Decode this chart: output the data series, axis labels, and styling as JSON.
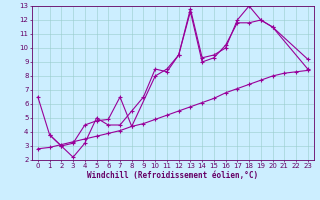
{
  "bg_color": "#cceeff",
  "line_color": "#990099",
  "grid_color": "#99cccc",
  "axis_color": "#660066",
  "tick_color": "#660066",
  "xlabel": "Windchill (Refroidissement éolien,°C)",
  "xlim": [
    -0.5,
    23.5
  ],
  "ylim": [
    2,
    13
  ],
  "xticks": [
    0,
    1,
    2,
    3,
    4,
    5,
    6,
    7,
    8,
    9,
    10,
    11,
    12,
    13,
    14,
    15,
    16,
    17,
    18,
    19,
    20,
    21,
    22,
    23
  ],
  "yticks": [
    2,
    3,
    4,
    5,
    6,
    7,
    8,
    9,
    10,
    11,
    12,
    13
  ],
  "line1_x": [
    0,
    1,
    2,
    3,
    4,
    5,
    6,
    7,
    8,
    9,
    10,
    11,
    12,
    13,
    14,
    15,
    16,
    17,
    18,
    19,
    20,
    23
  ],
  "line1_y": [
    6.5,
    3.8,
    3.0,
    2.2,
    3.2,
    5.0,
    4.5,
    4.5,
    5.5,
    6.5,
    8.5,
    8.3,
    9.5,
    12.6,
    9.0,
    9.3,
    10.2,
    11.8,
    11.8,
    12.0,
    11.5,
    8.5
  ],
  "line2_x": [
    1,
    2,
    3,
    4,
    5,
    6,
    7,
    8,
    10,
    11,
    12,
    13,
    14,
    15,
    16,
    17,
    18,
    19,
    20,
    23
  ],
  "line2_y": [
    3.8,
    3.0,
    3.2,
    4.5,
    4.8,
    4.9,
    6.5,
    4.4,
    8.0,
    8.5,
    9.5,
    12.8,
    9.3,
    9.5,
    10.0,
    12.0,
    13.0,
    12.0,
    11.5,
    9.2
  ],
  "line3_x": [
    0,
    1,
    2,
    3,
    4,
    5,
    6,
    7,
    8,
    9,
    10,
    11,
    12,
    13,
    14,
    15,
    16,
    17,
    18,
    19,
    20,
    21,
    22,
    23
  ],
  "line3_y": [
    2.8,
    2.9,
    3.1,
    3.3,
    3.5,
    3.7,
    3.9,
    4.1,
    4.4,
    4.6,
    4.9,
    5.2,
    5.5,
    5.8,
    6.1,
    6.4,
    6.8,
    7.1,
    7.4,
    7.7,
    8.0,
    8.2,
    8.3,
    8.4
  ],
  "linewidth": 0.8,
  "markersize": 3,
  "xlabel_fontsize": 5.5,
  "tick_fontsize": 5
}
